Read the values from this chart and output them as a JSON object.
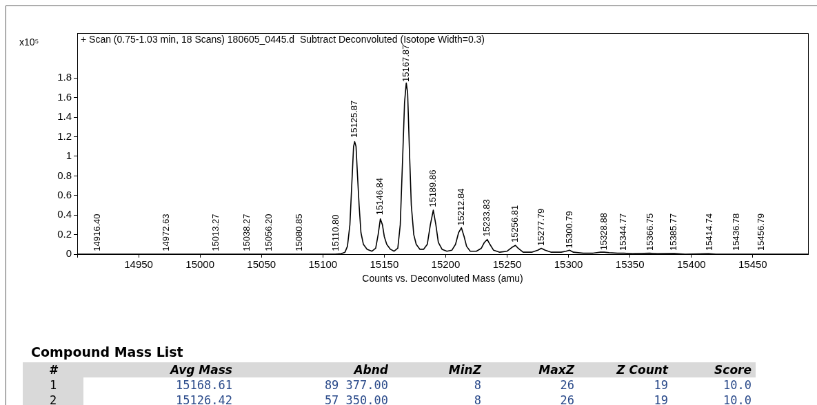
{
  "chart_data": [
    {
      "type": "line",
      "title": "+ Scan (0.75-1.03 min, 18 Scans) 180605_0445.d  Subtract Deconvoluted (Isotope Width=0.3)",
      "xlabel": "Counts vs. Deconvoluted Mass (amu)",
      "ylabel": "x10⁵",
      "x": [
        14900,
        15110,
        15115,
        15118,
        15120,
        15122,
        15123.5,
        15125,
        15125.9,
        15127,
        15128,
        15129.5,
        15131,
        15133,
        15136,
        15140,
        15143,
        15145,
        15146.8,
        15148.5,
        15150,
        15152,
        15155,
        15158,
        15161,
        15163,
        15165,
        15166.5,
        15167.9,
        15169,
        15170.5,
        15172,
        15174,
        15176,
        15179,
        15182,
        15185,
        15187.5,
        15189.9,
        15192,
        15194,
        15197,
        15201,
        15205,
        15208,
        15210.5,
        15212.8,
        15215,
        15217,
        15220,
        15225,
        15229,
        15231.5,
        15233.8,
        15236,
        15239,
        15244,
        15250,
        15254,
        15256.8,
        15259,
        15263,
        15270,
        15275,
        15277.8,
        15281,
        15286,
        15294,
        15298,
        15300.8,
        15304,
        15312,
        15320,
        15326,
        15329,
        15333,
        15340,
        15345,
        15352,
        15366,
        15372,
        15386,
        15395,
        15414,
        15420,
        15495
      ],
      "series": [
        {
          "color": "#000000",
          "values": [
            0,
            0,
            0.005,
            0.02,
            0.08,
            0.3,
            0.7,
            1.1,
            1.15,
            1.1,
            0.85,
            0.5,
            0.22,
            0.1,
            0.05,
            0.03,
            0.06,
            0.2,
            0.36,
            0.3,
            0.18,
            0.1,
            0.05,
            0.03,
            0.06,
            0.3,
            1.0,
            1.55,
            1.75,
            1.65,
            1.05,
            0.5,
            0.2,
            0.1,
            0.05,
            0.05,
            0.1,
            0.3,
            0.45,
            0.3,
            0.12,
            0.05,
            0.03,
            0.04,
            0.1,
            0.22,
            0.27,
            0.18,
            0.08,
            0.03,
            0.03,
            0.06,
            0.12,
            0.15,
            0.1,
            0.04,
            0.02,
            0.03,
            0.07,
            0.09,
            0.06,
            0.02,
            0.02,
            0.04,
            0.06,
            0.04,
            0.02,
            0.02,
            0.03,
            0.04,
            0.02,
            0.01,
            0.01,
            0.02,
            0.02,
            0.015,
            0.01,
            0.01,
            0.005,
            0.01,
            0.005,
            0.006,
            0,
            0.005,
            0,
            0
          ]
        }
      ],
      "xlim": [
        14900,
        15495
      ],
      "xticks": [
        {
          "value": 14900,
          "label": null
        },
        14950,
        15000,
        15050,
        15100,
        15150,
        15200,
        15250,
        15300,
        15350,
        15400,
        15450
      ],
      "ylim": [
        0,
        2.26
      ],
      "yticks": [
        0,
        0.2,
        0.4,
        0.6,
        0.8,
        1,
        1.2,
        1.4,
        1.6,
        1.8
      ],
      "grid": false,
      "legend": false,
      "marker": "none",
      "line_style": "solid",
      "annotations": [
        {
          "text": "14916.40",
          "x": 14916.4,
          "y": 0.03
        },
        {
          "text": "14972.63",
          "x": 14972.63,
          "y": 0.03
        },
        {
          "text": "15013.27",
          "x": 15013.27,
          "y": 0.03
        },
        {
          "text": "15038.27",
          "x": 15038.27,
          "y": 0.03
        },
        {
          "text": "15056.20",
          "x": 15056.2,
          "y": 0.03
        },
        {
          "text": "15080.85",
          "x": 15080.85,
          "y": 0.03
        },
        {
          "text": "15110.80",
          "x": 15110.8,
          "y": 0.03
        },
        {
          "text": "15125.87",
          "x": 15125.87,
          "y": 1.19
        },
        {
          "text": "15146.84",
          "x": 15146.84,
          "y": 0.4
        },
        {
          "text": "15167.87",
          "x": 15167.87,
          "y": 1.76
        },
        {
          "text": "15189.86",
          "x": 15189.86,
          "y": 0.48
        },
        {
          "text": "15212.84",
          "x": 15212.84,
          "y": 0.29
        },
        {
          "text": "15233.83",
          "x": 15233.83,
          "y": 0.18
        },
        {
          "text": "15256.81",
          "x": 15256.81,
          "y": 0.12
        },
        {
          "text": "15277.79",
          "x": 15277.79,
          "y": 0.085
        },
        {
          "text": "15300.79",
          "x": 15300.79,
          "y": 0.06
        },
        {
          "text": "15328.88",
          "x": 15328.88,
          "y": 0.04
        },
        {
          "text": "15344.77",
          "x": 15344.77,
          "y": 0.035
        },
        {
          "text": "15366.75",
          "x": 15366.75,
          "y": 0.035
        },
        {
          "text": "15385.77",
          "x": 15385.77,
          "y": 0.035
        },
        {
          "text": "15414.74",
          "x": 15414.74,
          "y": 0.035
        },
        {
          "text": "15436.78",
          "x": 15436.78,
          "y": 0.035
        },
        {
          "text": "15456.79",
          "x": 15456.79,
          "y": 0.035
        }
      ]
    },
    {
      "type": "other",
      "title": "Compound Mass List",
      "categories": [
        "#",
        "Avg Mass",
        "Abnd",
        "MinZ",
        "MaxZ",
        "Z Count",
        "Score"
      ],
      "annotations": [
        "1",
        "15168.61",
        "89 377.00",
        "8",
        "26",
        "19",
        "10.0",
        "2",
        "15126.42",
        "57 350.00",
        "8",
        "26",
        "19",
        "10.0"
      ]
    }
  ]
}
